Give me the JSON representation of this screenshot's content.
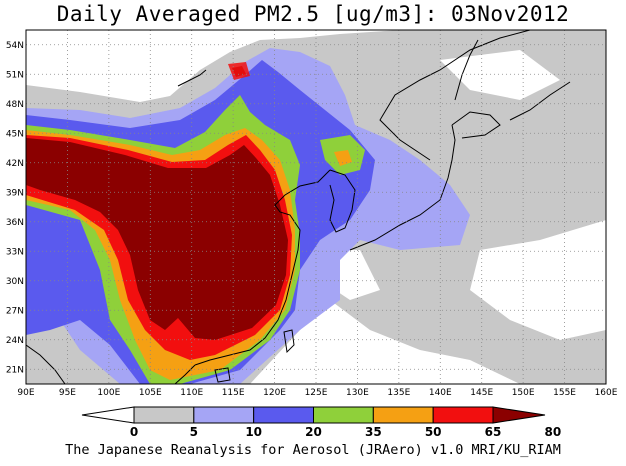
{
  "title": "Daily Averaged PM2.5 [ug/m3]: 03Nov2012",
  "footer": "The Japanese Reanalysis for Aerosol (JRAero) v1.0 MRI/KU_RIAM",
  "map": {
    "lon_range": [
      90,
      160
    ],
    "lat_range": [
      19.5,
      55.5
    ],
    "lon_ticks": [
      "90E",
      "95E",
      "100E",
      "105E",
      "110E",
      "115E",
      "120E",
      "125E",
      "130E",
      "135E",
      "140E",
      "145E",
      "150E",
      "155E",
      "160E"
    ],
    "lat_ticks": [
      "54N",
      "51N",
      "48N",
      "45N",
      "42N",
      "39N",
      "36N",
      "33N",
      "30N",
      "27N",
      "24N",
      "21N"
    ],
    "grid": "dotted"
  },
  "colorbar": {
    "levels": [
      "0",
      "5",
      "10",
      "20",
      "35",
      "50",
      "65",
      "80"
    ],
    "colors": [
      "#ffffff",
      "#c8c8c8",
      "#a5a5f5",
      "#5a5aee",
      "#8fd03a",
      "#f5a013",
      "#f20f0f",
      "#8b0000"
    ]
  }
}
